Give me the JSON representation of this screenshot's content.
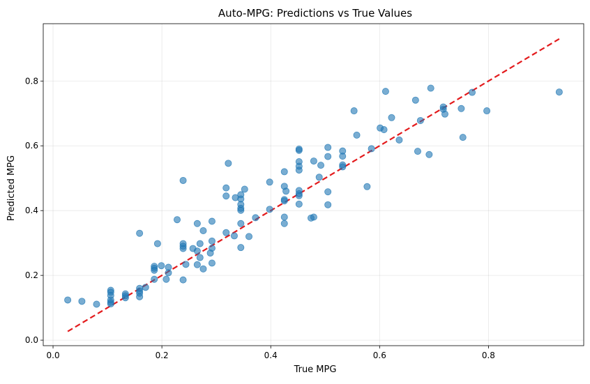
{
  "chart_data": {
    "type": "scatter",
    "title": "Auto-MPG: Predictions vs True Values",
    "xlabel": "True MPG",
    "ylabel": "Predicted MPG",
    "xlim": [
      -0.018,
      0.975
    ],
    "ylim": [
      -0.017,
      0.977
    ],
    "xticks": [
      0.0,
      0.2,
      0.4,
      0.6,
      0.8
    ],
    "yticks": [
      0.0,
      0.2,
      0.4,
      0.6,
      0.8
    ],
    "xtick_labels": [
      "0.0",
      "0.2",
      "0.4",
      "0.6",
      "0.8"
    ],
    "ytick_labels": [
      "0.0",
      "0.2",
      "0.4",
      "0.6",
      "0.8"
    ],
    "grid": true,
    "point_color": "#1f77b4",
    "reference_line": {
      "x": [
        0.027,
        0.93
      ],
      "y": [
        0.027,
        0.93
      ],
      "color": "#e31a1c",
      "style": "dashed"
    },
    "points": [
      {
        "x": 0.027,
        "y": 0.124
      },
      {
        "x": 0.053,
        "y": 0.12
      },
      {
        "x": 0.08,
        "y": 0.111
      },
      {
        "x": 0.106,
        "y": 0.154
      },
      {
        "x": 0.106,
        "y": 0.148
      },
      {
        "x": 0.106,
        "y": 0.138
      },
      {
        "x": 0.106,
        "y": 0.124
      },
      {
        "x": 0.106,
        "y": 0.117
      },
      {
        "x": 0.106,
        "y": 0.112
      },
      {
        "x": 0.133,
        "y": 0.143
      },
      {
        "x": 0.133,
        "y": 0.137
      },
      {
        "x": 0.133,
        "y": 0.131
      },
      {
        "x": 0.159,
        "y": 0.33
      },
      {
        "x": 0.159,
        "y": 0.16
      },
      {
        "x": 0.159,
        "y": 0.152
      },
      {
        "x": 0.159,
        "y": 0.145
      },
      {
        "x": 0.159,
        "y": 0.134
      },
      {
        "x": 0.17,
        "y": 0.163
      },
      {
        "x": 0.186,
        "y": 0.228
      },
      {
        "x": 0.186,
        "y": 0.222
      },
      {
        "x": 0.186,
        "y": 0.216
      },
      {
        "x": 0.186,
        "y": 0.188
      },
      {
        "x": 0.192,
        "y": 0.298
      },
      {
        "x": 0.199,
        "y": 0.23
      },
      {
        "x": 0.208,
        "y": 0.188
      },
      {
        "x": 0.212,
        "y": 0.225
      },
      {
        "x": 0.212,
        "y": 0.208
      },
      {
        "x": 0.228,
        "y": 0.372
      },
      {
        "x": 0.239,
        "y": 0.493
      },
      {
        "x": 0.239,
        "y": 0.298
      },
      {
        "x": 0.239,
        "y": 0.29
      },
      {
        "x": 0.239,
        "y": 0.283
      },
      {
        "x": 0.239,
        "y": 0.186
      },
      {
        "x": 0.244,
        "y": 0.234
      },
      {
        "x": 0.257,
        "y": 0.283
      },
      {
        "x": 0.265,
        "y": 0.36
      },
      {
        "x": 0.265,
        "y": 0.275
      },
      {
        "x": 0.265,
        "y": 0.233
      },
      {
        "x": 0.27,
        "y": 0.298
      },
      {
        "x": 0.27,
        "y": 0.255
      },
      {
        "x": 0.276,
        "y": 0.338
      },
      {
        "x": 0.276,
        "y": 0.22
      },
      {
        "x": 0.292,
        "y": 0.367
      },
      {
        "x": 0.292,
        "y": 0.306
      },
      {
        "x": 0.292,
        "y": 0.284
      },
      {
        "x": 0.289,
        "y": 0.269
      },
      {
        "x": 0.292,
        "y": 0.238
      },
      {
        "x": 0.318,
        "y": 0.47
      },
      {
        "x": 0.318,
        "y": 0.445
      },
      {
        "x": 0.318,
        "y": 0.332
      },
      {
        "x": 0.322,
        "y": 0.546
      },
      {
        "x": 0.333,
        "y": 0.322
      },
      {
        "x": 0.335,
        "y": 0.44
      },
      {
        "x": 0.345,
        "y": 0.449
      },
      {
        "x": 0.345,
        "y": 0.436
      },
      {
        "x": 0.345,
        "y": 0.419
      },
      {
        "x": 0.345,
        "y": 0.407
      },
      {
        "x": 0.345,
        "y": 0.401
      },
      {
        "x": 0.345,
        "y": 0.36
      },
      {
        "x": 0.345,
        "y": 0.286
      },
      {
        "x": 0.352,
        "y": 0.466
      },
      {
        "x": 0.36,
        "y": 0.32
      },
      {
        "x": 0.372,
        "y": 0.378
      },
      {
        "x": 0.398,
        "y": 0.488
      },
      {
        "x": 0.398,
        "y": 0.404
      },
      {
        "x": 0.425,
        "y": 0.52
      },
      {
        "x": 0.425,
        "y": 0.475
      },
      {
        "x": 0.425,
        "y": 0.434
      },
      {
        "x": 0.425,
        "y": 0.43
      },
      {
        "x": 0.425,
        "y": 0.38
      },
      {
        "x": 0.425,
        "y": 0.36
      },
      {
        "x": 0.428,
        "y": 0.46
      },
      {
        "x": 0.452,
        "y": 0.59
      },
      {
        "x": 0.452,
        "y": 0.586
      },
      {
        "x": 0.452,
        "y": 0.551
      },
      {
        "x": 0.452,
        "y": 0.537
      },
      {
        "x": 0.452,
        "y": 0.525
      },
      {
        "x": 0.452,
        "y": 0.462
      },
      {
        "x": 0.452,
        "y": 0.452
      },
      {
        "x": 0.452,
        "y": 0.446
      },
      {
        "x": 0.452,
        "y": 0.42
      },
      {
        "x": 0.474,
        "y": 0.377
      },
      {
        "x": 0.479,
        "y": 0.553
      },
      {
        "x": 0.479,
        "y": 0.38
      },
      {
        "x": 0.489,
        "y": 0.503
      },
      {
        "x": 0.492,
        "y": 0.54
      },
      {
        "x": 0.505,
        "y": 0.595
      },
      {
        "x": 0.505,
        "y": 0.567
      },
      {
        "x": 0.505,
        "y": 0.458
      },
      {
        "x": 0.505,
        "y": 0.418
      },
      {
        "x": 0.532,
        "y": 0.584
      },
      {
        "x": 0.532,
        "y": 0.568
      },
      {
        "x": 0.532,
        "y": 0.541
      },
      {
        "x": 0.532,
        "y": 0.535
      },
      {
        "x": 0.553,
        "y": 0.708
      },
      {
        "x": 0.558,
        "y": 0.633
      },
      {
        "x": 0.577,
        "y": 0.474
      },
      {
        "x": 0.585,
        "y": 0.591
      },
      {
        "x": 0.601,
        "y": 0.655
      },
      {
        "x": 0.608,
        "y": 0.65
      },
      {
        "x": 0.611,
        "y": 0.768
      },
      {
        "x": 0.622,
        "y": 0.687
      },
      {
        "x": 0.636,
        "y": 0.618
      },
      {
        "x": 0.666,
        "y": 0.741
      },
      {
        "x": 0.67,
        "y": 0.583
      },
      {
        "x": 0.675,
        "y": 0.678
      },
      {
        "x": 0.691,
        "y": 0.573
      },
      {
        "x": 0.694,
        "y": 0.778
      },
      {
        "x": 0.717,
        "y": 0.72
      },
      {
        "x": 0.717,
        "y": 0.713
      },
      {
        "x": 0.72,
        "y": 0.698
      },
      {
        "x": 0.75,
        "y": 0.715
      },
      {
        "x": 0.753,
        "y": 0.626
      },
      {
        "x": 0.77,
        "y": 0.765
      },
      {
        "x": 0.797,
        "y": 0.708
      },
      {
        "x": 0.93,
        "y": 0.766
      }
    ]
  }
}
